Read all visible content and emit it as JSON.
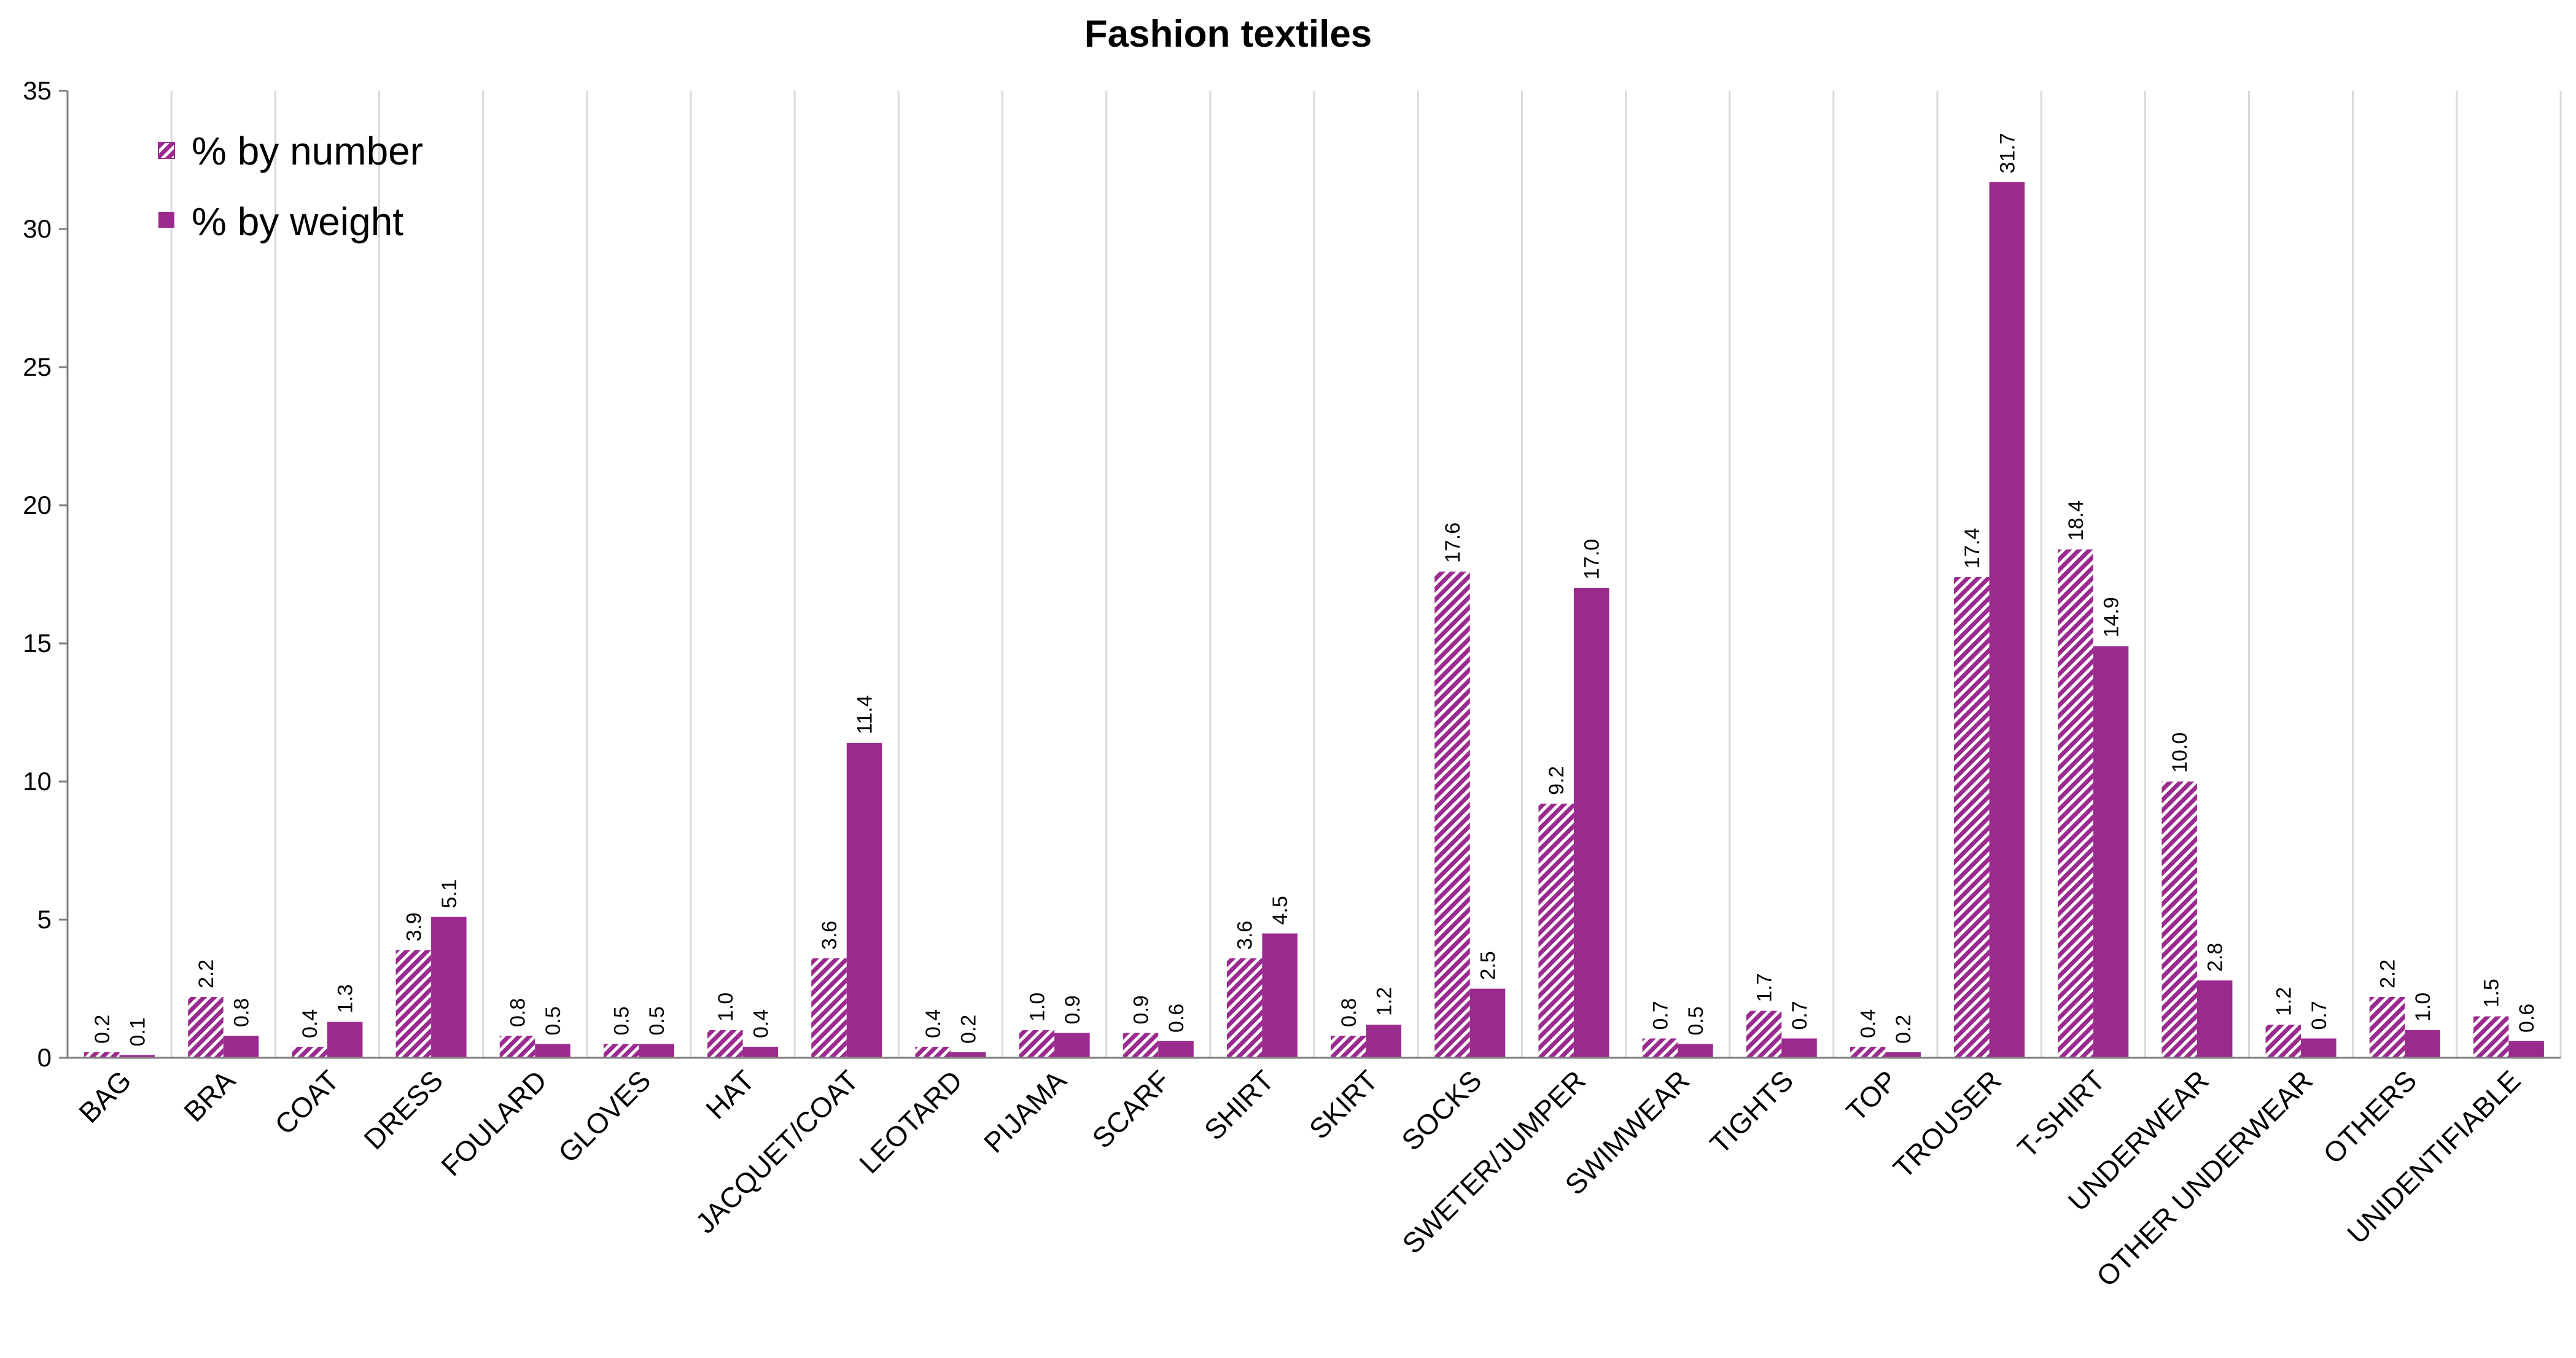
{
  "chart_data": {
    "type": "bar",
    "title": "Fashion textiles",
    "xlabel": "",
    "ylabel": "",
    "ylim": [
      0,
      35
    ],
    "yticks": [
      0,
      5,
      10,
      15,
      20,
      25,
      30,
      35
    ],
    "grid": "vertical category separators",
    "legend_position": "top-left",
    "categories": [
      "BAG",
      "BRA",
      "COAT",
      "DRESS",
      "FOULARD",
      "GLOVES",
      "HAT",
      "JACQUET/COAT",
      "LEOTARD",
      "PIJAMA",
      "SCARF",
      "SHIRT",
      "SKIRT",
      "SOCKS",
      "SWETER/JUMPER",
      "SWIMWEAR",
      "TIGHTS",
      "TOP",
      "TROUSER",
      "T-SHIRT",
      "UNDERWEAR",
      "OTHER UNDERWEAR",
      "OTHERS",
      "UNIDENTIFIABLE"
    ],
    "series": [
      {
        "name": "% by number",
        "pattern": "hatched",
        "color": "#9b2a8f",
        "values": [
          0.2,
          2.2,
          0.4,
          3.9,
          0.8,
          0.5,
          1.0,
          3.6,
          0.4,
          1.0,
          0.9,
          3.6,
          0.8,
          17.6,
          9.2,
          0.7,
          1.7,
          0.4,
          17.4,
          18.4,
          10.0,
          1.2,
          2.2,
          1.5
        ],
        "labels": [
          "0.2",
          "2.2",
          "0.4",
          "3.9",
          "0.8",
          "0.5",
          "1.0",
          "3.6",
          "0.4",
          "1.0",
          "0.9",
          "3.6",
          "0.8",
          "17.6",
          "9.2",
          "0.7",
          "1.7",
          "0.4",
          "17.4",
          "18.4",
          "10.0",
          "1.2",
          "2.2",
          "1.5"
        ]
      },
      {
        "name": "% by weight",
        "pattern": "solid",
        "color": "#9b2a8f",
        "values": [
          0.1,
          0.8,
          1.3,
          5.1,
          0.5,
          0.5,
          0.4,
          11.4,
          0.2,
          0.9,
          0.6,
          4.5,
          1.2,
          2.5,
          17.0,
          0.5,
          0.7,
          0.2,
          31.7,
          14.9,
          2.8,
          0.7,
          1.0,
          0.6
        ],
        "labels": [
          "0.1",
          "0.8",
          "1.3",
          "5.1",
          "0.5",
          "0.5",
          "0.4",
          "11.4",
          "0.2",
          "0.9",
          "0.6",
          "4.5",
          "1.2",
          "2.5",
          "17.0",
          "0.5",
          "0.7",
          "0.2",
          "31.7",
          "14.9",
          "2.8",
          "0.7",
          "1.0",
          "0.6"
        ]
      }
    ]
  }
}
